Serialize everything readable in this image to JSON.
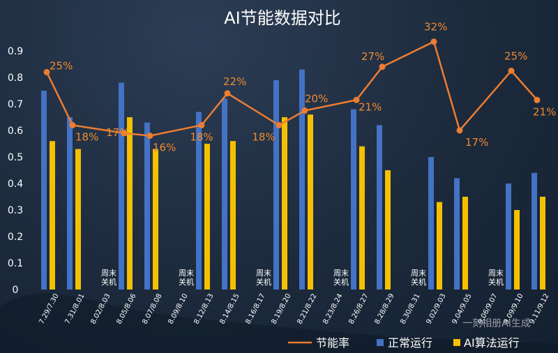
{
  "chart_data": {
    "type": "bar",
    "title": "AI节能数据对比",
    "categories": [
      "7.29/7.30",
      "7.31/8.01",
      "8.02/8.03",
      "8.05/8.06",
      "8.07/8.08",
      "8.09/8.10",
      "8.12/8.13",
      "8.14/8.15",
      "8.16/8.17",
      "8.19/8.20",
      "8.21/8.22",
      "8.23/8.24",
      "8.26/8.27",
      "8.28/8.29",
      "8.30/8.31",
      "9.02/9.03",
      "9.04/9.05",
      "9.06/9.07",
      "9.09/9.10",
      "9.11/9.12"
    ],
    "ylim": [
      0,
      0.9
    ],
    "yticks": [
      "0",
      "0.1",
      "0.2",
      "0.3",
      "0.4",
      "0.5",
      "0.6",
      "0.7",
      "0.8",
      "0.9"
    ],
    "series": [
      {
        "name": "正常运行",
        "type": "bar",
        "color": "#4472c4",
        "values": [
          0.75,
          0.65,
          null,
          0.78,
          0.63,
          null,
          0.67,
          0.72,
          null,
          0.79,
          0.83,
          null,
          0.68,
          0.62,
          null,
          0.5,
          0.42,
          null,
          0.4,
          0.44
        ]
      },
      {
        "name": "AI算法运行",
        "type": "bar",
        "color": "#f5c000",
        "values": [
          0.56,
          0.53,
          null,
          0.65,
          0.53,
          null,
          0.55,
          0.56,
          null,
          0.65,
          0.66,
          null,
          0.54,
          0.45,
          null,
          0.33,
          0.35,
          null,
          0.3,
          0.35
        ]
      },
      {
        "name": "节能率",
        "type": "line",
        "color": "#ed7d31",
        "x": [
          "7.29/7.30",
          "7.31/8.01",
          "8.05/8.06",
          "8.07/8.08",
          "8.12/8.13",
          "8.14/8.15",
          "8.19/8.20",
          "8.21/8.22",
          "8.26/8.27",
          "8.28/8.29",
          "9.02/9.03",
          "9.04/9.05",
          "9.09/9.10",
          "9.11/9.12"
        ],
        "values": [
          0.82,
          0.62,
          0.59,
          0.58,
          0.62,
          0.74,
          0.62,
          0.675,
          0.715,
          0.84,
          0.935,
          0.6,
          0.825,
          0.715
        ],
        "labels": [
          "25%",
          "18%",
          "17%",
          "16%",
          "18%",
          "22%",
          "18%",
          "20%",
          "21%",
          "27%",
          "32%",
          "17%",
          "25%",
          "21%"
        ]
      }
    ],
    "annotations": [
      {
        "category": "8.02/8.03",
        "text": [
          "周末",
          "关机"
        ]
      },
      {
        "category": "8.09/8.10",
        "text": [
          "周末",
          "关机"
        ]
      },
      {
        "category": "8.16/8.17",
        "text": [
          "周末",
          "关机"
        ]
      },
      {
        "category": "8.23/8.24",
        "text": [
          "周末",
          "关机"
        ]
      },
      {
        "category": "8.30/8.31",
        "text": [
          "周末",
          "关机"
        ]
      },
      {
        "category": "9.06/9.07",
        "text": [
          "周末",
          "关机"
        ]
      }
    ],
    "legend": {
      "position": "bottom"
    }
  },
  "watermark": "一刻相册AI生成"
}
